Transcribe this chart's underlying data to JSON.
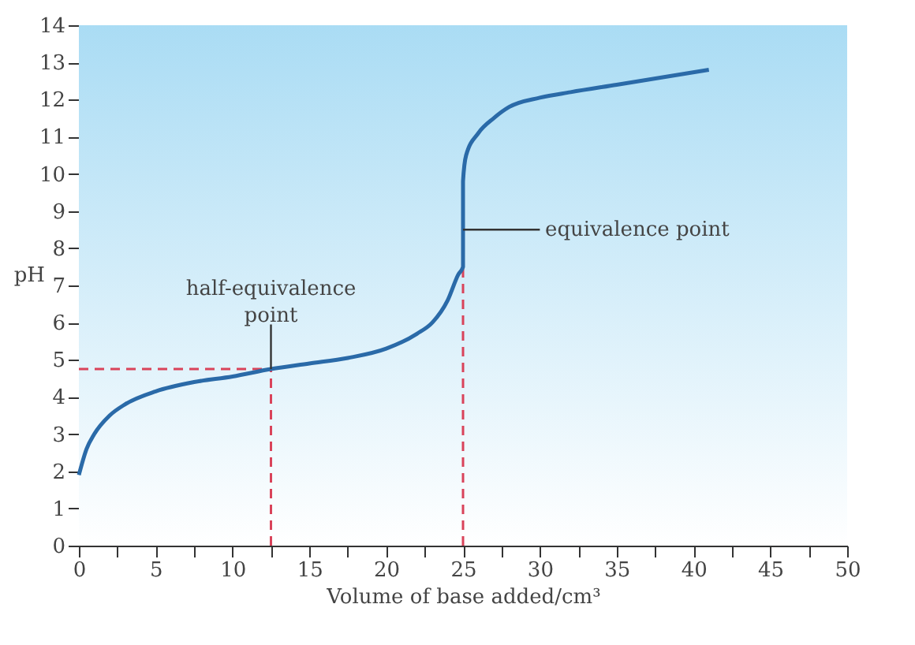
{
  "chart_data": {
    "type": "line",
    "xlabel": "Volume of base added/cm³",
    "ylabel": "pH",
    "series": [
      {
        "color": "#2a6aa8",
        "x": [
          0,
          0.5,
          1,
          2,
          3,
          5,
          7.5,
          10,
          12.5,
          15,
          17.5,
          20,
          22,
          23,
          24,
          24.7,
          25,
          25,
          25.2,
          26,
          27,
          28,
          30,
          32,
          35,
          38,
          41
        ],
        "values": [
          1.9,
          2.6,
          3.0,
          3.5,
          3.8,
          4.15,
          4.4,
          4.55,
          4.75,
          4.9,
          5.05,
          5.3,
          5.7,
          6.0,
          6.6,
          7.3,
          7.5,
          9.8,
          10.5,
          11.1,
          11.5,
          11.8,
          12.05,
          12.2,
          12.4,
          12.6,
          12.8
        ]
      }
    ],
    "xlim": [
      0,
      50
    ],
    "ylim": [
      0,
      14
    ],
    "xticks": [
      0,
      {
        "value": 2.5,
        "label": null
      },
      5,
      {
        "value": 7.5,
        "label": null
      },
      10,
      {
        "value": 12.5,
        "label": null
      },
      15,
      {
        "value": 17.5,
        "label": null
      },
      20,
      {
        "value": 22.5,
        "label": null
      },
      25,
      {
        "value": 27.5,
        "label": null
      },
      30,
      {
        "value": 32.5,
        "label": null
      },
      35,
      {
        "value": 37.5,
        "label": null
      },
      40,
      {
        "value": 42.5,
        "label": null
      },
      45,
      {
        "value": 47.5,
        "label": null
      },
      50
    ],
    "yticks": [
      0,
      1,
      2,
      3,
      4,
      5,
      6,
      7,
      8,
      9,
      10,
      11,
      12,
      13,
      14
    ],
    "ref_lines": [
      {
        "axis": "y",
        "value": 4.75,
        "color": "#d9435a",
        "line_style": "dashed"
      },
      {
        "axis": "x",
        "value": 12.5,
        "color": "#d9435a",
        "line_style": "dashed"
      },
      {
        "axis": "x",
        "value": 25,
        "color": "#d9435a",
        "line_style": "dashed"
      }
    ],
    "annotations": [
      {
        "text": "half-equivalence point",
        "x": 12.5,
        "y": 4.75
      },
      {
        "text": "equivalence point",
        "x": 25,
        "y": 8.5
      }
    ],
    "grid": false,
    "marker": "none",
    "line_style": "solid"
  }
}
